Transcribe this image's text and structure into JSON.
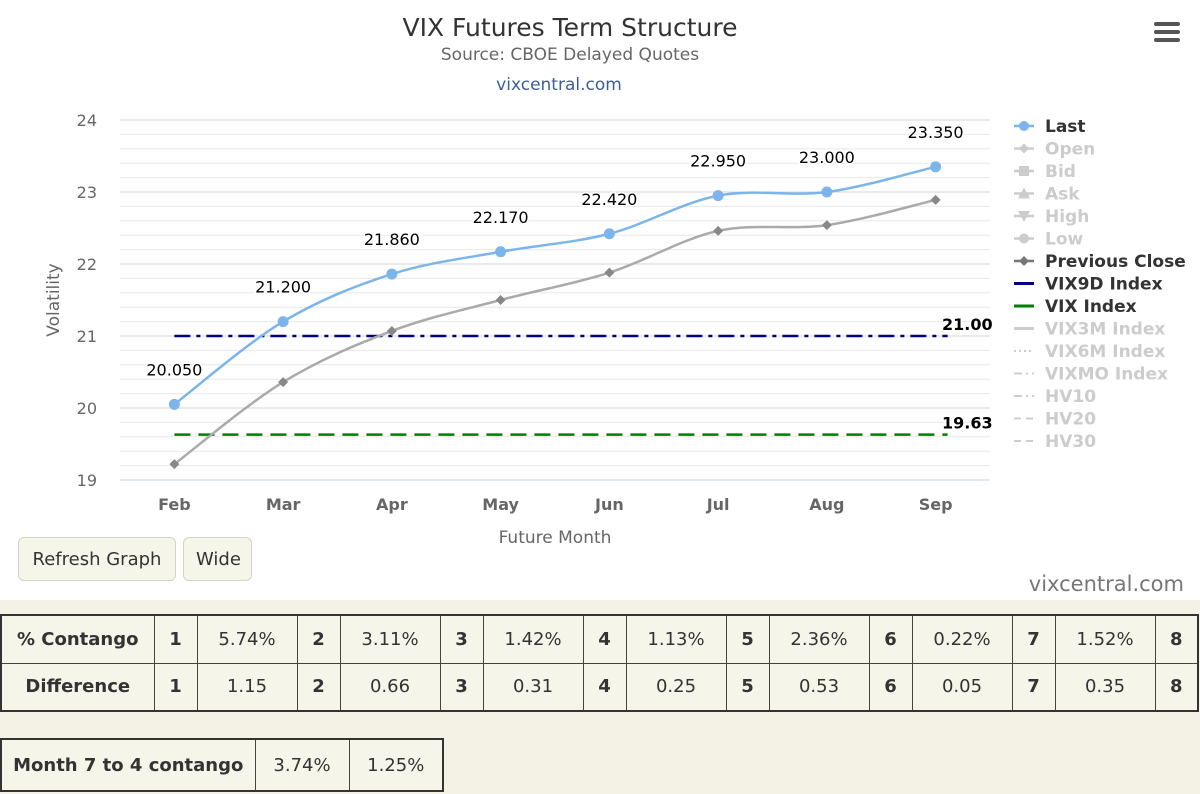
{
  "header": {
    "title": "VIX Futures Term Structure",
    "subtitle": "Source: CBOE Delayed Quotes",
    "link": "vixcentral.com"
  },
  "chart_data": {
    "type": "line",
    "title": "VIX Futures Term Structure",
    "subtitle": "Source: CBOE Delayed Quotes",
    "xlabel": "Future Month",
    "ylabel": "Volatility",
    "categories": [
      "Feb",
      "Mar",
      "Apr",
      "May",
      "Jun",
      "Jul",
      "Aug",
      "Sep"
    ],
    "ylim": [
      19,
      24
    ],
    "yticks": [
      "19",
      "20",
      "21",
      "22",
      "23",
      "24"
    ],
    "grid": true,
    "legend_position": "right",
    "series": [
      {
        "name": "Last",
        "values": [
          20.05,
          21.2,
          21.86,
          22.17,
          22.42,
          22.95,
          23.0,
          23.35
        ],
        "labels": [
          "20.050",
          "21.200",
          "21.860",
          "22.170",
          "22.420",
          "22.950",
          "23.000",
          "23.350"
        ],
        "color": "#7cb5ec"
      },
      {
        "name": "Previous Close",
        "values": [
          19.22,
          20.36,
          21.07,
          21.5,
          21.88,
          22.46,
          22.54,
          22.89
        ],
        "color": "#aaaaaa"
      },
      {
        "name": "VIX9D Index",
        "value": 21.0,
        "label": "21.00",
        "color": "#00007f"
      },
      {
        "name": "VIX Index",
        "value": 19.63,
        "label": "19.63",
        "color": "#008000"
      }
    ],
    "legend": [
      {
        "name": "Last",
        "active": true,
        "symbol": "circle"
      },
      {
        "name": "Open",
        "active": false,
        "symbol": "diamond"
      },
      {
        "name": "Bid",
        "active": false,
        "symbol": "square"
      },
      {
        "name": "Ask",
        "active": false,
        "symbol": "triangle"
      },
      {
        "name": "High",
        "active": false,
        "symbol": "triangle-down"
      },
      {
        "name": "Low",
        "active": false,
        "symbol": "circle"
      },
      {
        "name": "Previous Close",
        "active": true,
        "symbol": "diamond"
      },
      {
        "name": "VIX9D Index",
        "active": true,
        "symbol": "line",
        "color": "#00007f"
      },
      {
        "name": "VIX Index",
        "active": true,
        "symbol": "line",
        "color": "#008000"
      },
      {
        "name": "VIX3M Index",
        "active": false,
        "symbol": "line"
      },
      {
        "name": "VIX6M Index",
        "active": false,
        "symbol": "dotted"
      },
      {
        "name": "VIXMO Index",
        "active": false,
        "symbol": "dashdot"
      },
      {
        "name": "HV10",
        "active": false,
        "symbol": "dashdot"
      },
      {
        "name": "HV20",
        "active": false,
        "symbol": "dashed"
      },
      {
        "name": "HV30",
        "active": false,
        "symbol": "dashed"
      }
    ]
  },
  "buttons": {
    "refresh": "Refresh Graph",
    "wide": "Wide"
  },
  "watermark": "vixcentral.com",
  "contango_table": {
    "rows": [
      {
        "label": "% Contango",
        "cells": [
          [
            "1",
            "5.74%"
          ],
          [
            "2",
            "3.11%"
          ],
          [
            "3",
            "1.42%"
          ],
          [
            "4",
            "1.13%"
          ],
          [
            "5",
            "2.36%"
          ],
          [
            "6",
            "0.22%"
          ],
          [
            "7",
            "1.52%"
          ],
          [
            "8",
            ""
          ]
        ]
      },
      {
        "label": "Difference",
        "cells": [
          [
            "1",
            "1.15"
          ],
          [
            "2",
            "0.66"
          ],
          [
            "3",
            "0.31"
          ],
          [
            "4",
            "0.25"
          ],
          [
            "5",
            "0.53"
          ],
          [
            "6",
            "0.05"
          ],
          [
            "7",
            "0.35"
          ],
          [
            "8",
            ""
          ]
        ]
      }
    ]
  },
  "month_table": {
    "label": "Month 7 to 4 contango",
    "values": [
      "3.74%",
      "1.25%"
    ]
  }
}
